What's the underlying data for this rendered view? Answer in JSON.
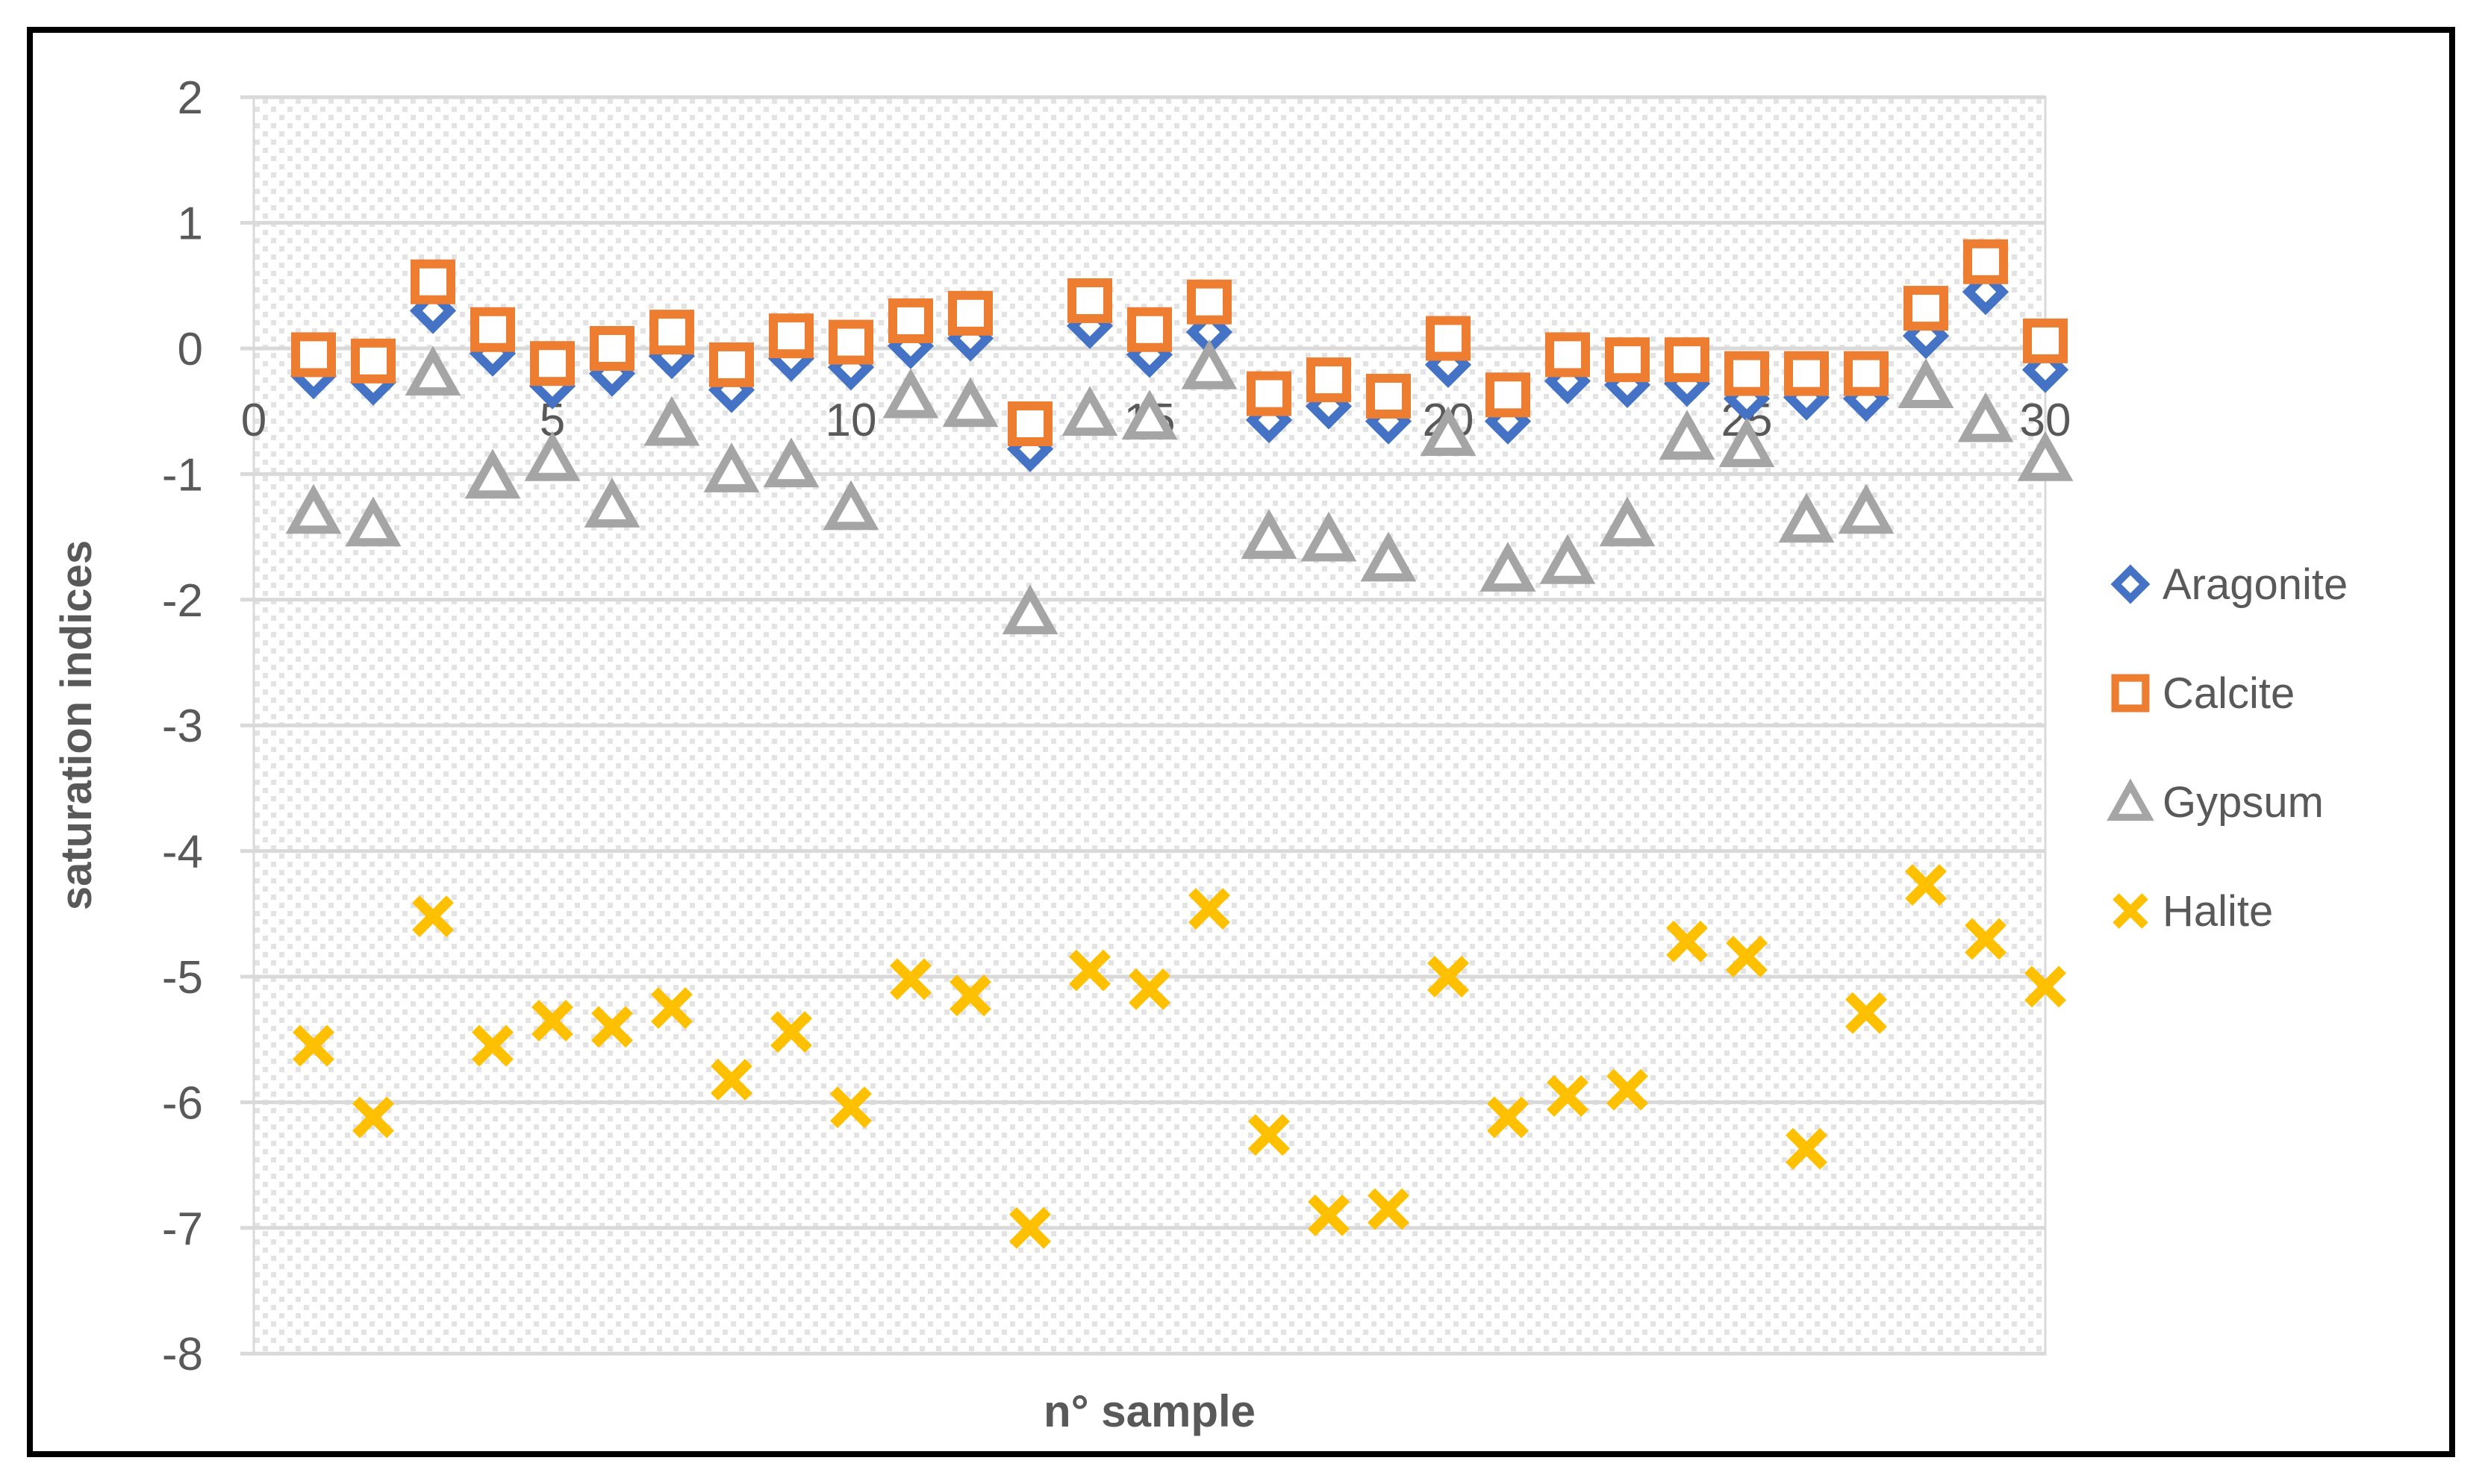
{
  "figure": {
    "background": "#ffffff",
    "border_color": "#000000",
    "text_color": "#595959",
    "grid_color": "#D9D9D9",
    "plot_fill_pattern": "light-diagonal-dotted-hatch",
    "hatch_dot_color": "#e3e3e3"
  },
  "chart_data": {
    "type": "scatter",
    "title": "",
    "xlabel": "n° sample",
    "ylabel": "saturation indices",
    "xlim": [
      0,
      30
    ],
    "ylim": [
      -8,
      2
    ],
    "grid": true,
    "legend_position": "right",
    "x_tick_labels": [
      "0",
      "5",
      "10",
      "15",
      "20",
      "25",
      "30"
    ],
    "x_tick_values": [
      0,
      5,
      10,
      15,
      20,
      25,
      30
    ],
    "y_tick_labels": [
      "2",
      "1",
      "0",
      "-1",
      "-2",
      "-3",
      "-4",
      "-5",
      "-6",
      "-7",
      "-8"
    ],
    "y_tick_values": [
      2,
      1,
      0,
      -1,
      -2,
      -3,
      -4,
      -5,
      -6,
      -7,
      -8
    ],
    "x_values": [
      1,
      2,
      3,
      4,
      5,
      6,
      7,
      8,
      9,
      10,
      11,
      12,
      13,
      14,
      15,
      16,
      17,
      18,
      19,
      20,
      21,
      22,
      23,
      24,
      25,
      26,
      27,
      28,
      29,
      30
    ],
    "series": [
      {
        "name": "Aragonite",
        "marker": "diamond",
        "color": "#4472C4",
        "values": [
          -0.22,
          -0.27,
          0.3,
          -0.04,
          -0.3,
          -0.2,
          -0.06,
          -0.33,
          -0.08,
          -0.15,
          0.02,
          0.08,
          -0.8,
          0.18,
          -0.05,
          0.13,
          -0.57,
          -0.46,
          -0.58,
          -0.13,
          -0.58,
          -0.26,
          -0.29,
          -0.28,
          -0.4,
          -0.39,
          -0.4,
          0.1,
          0.45,
          -0.17
        ]
      },
      {
        "name": "Calcite",
        "marker": "square",
        "color": "#ED7D31",
        "values": [
          -0.05,
          -0.1,
          0.53,
          0.15,
          -0.12,
          0.0,
          0.13,
          -0.13,
          0.1,
          0.05,
          0.22,
          0.28,
          -0.6,
          0.38,
          0.15,
          0.37,
          -0.36,
          -0.25,
          -0.38,
          0.08,
          -0.37,
          -0.05,
          -0.09,
          -0.09,
          -0.2,
          -0.2,
          -0.2,
          0.32,
          0.69,
          0.06
        ]
      },
      {
        "name": "Gypsum",
        "marker": "triangle",
        "color": "#A5A5A5",
        "values": [
          -1.3,
          -1.4,
          -0.2,
          -1.02,
          -0.88,
          -1.25,
          -0.6,
          -0.97,
          -0.93,
          -1.27,
          -0.38,
          -0.45,
          -2.1,
          -0.52,
          -0.55,
          -0.15,
          -1.5,
          -1.52,
          -1.68,
          -0.68,
          -1.76,
          -1.7,
          -1.4,
          -0.71,
          -0.77,
          -1.37,
          -1.3,
          -0.3,
          -0.57,
          -0.88
        ]
      },
      {
        "name": "Halite",
        "marker": "x",
        "color": "#FFC000",
        "values": [
          -5.55,
          -6.12,
          -4.52,
          -5.55,
          -5.35,
          -5.4,
          -5.25,
          -5.82,
          -5.44,
          -6.04,
          -5.02,
          -5.15,
          -7.0,
          -4.95,
          -5.1,
          -4.46,
          -6.26,
          -6.9,
          -6.85,
          -5.0,
          -6.12,
          -5.95,
          -5.9,
          -4.72,
          -4.84,
          -6.37,
          -5.29,
          -4.27,
          -4.7,
          -5.08
        ]
      }
    ]
  }
}
